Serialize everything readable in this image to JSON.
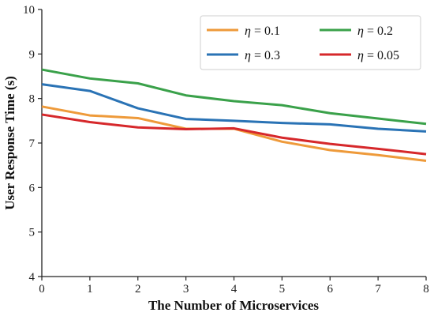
{
  "chart_data": {
    "type": "line",
    "xlabel": "The Number of Microservices",
    "ylabel": "User Response Time (s)",
    "x": [
      0,
      1,
      2,
      3,
      4,
      5,
      6,
      7,
      8
    ],
    "xlim": [
      0,
      8
    ],
    "ylim": [
      4,
      10
    ],
    "xticks": [
      "0",
      "1",
      "2",
      "3",
      "4",
      "5",
      "6",
      "7",
      "8"
    ],
    "yticks": [
      "4",
      "5",
      "6",
      "7",
      "8",
      "9",
      "10"
    ],
    "grid": false,
    "legend_position": "top-right",
    "series": [
      {
        "name_symbol": "η",
        "name_value": "= 0.1",
        "color": "#ee9a3a",
        "values": [
          7.82,
          7.62,
          7.56,
          7.32,
          7.32,
          7.03,
          6.84,
          6.73,
          6.6
        ]
      },
      {
        "name_symbol": "η",
        "name_value": "= 0.3",
        "color": "#2a73b5",
        "values": [
          8.32,
          8.17,
          7.78,
          7.54,
          7.5,
          7.45,
          7.42,
          7.32,
          7.26
        ]
      },
      {
        "name_symbol": "η",
        "name_value": "= 0.2",
        "color": "#3aa14a",
        "values": [
          8.65,
          8.45,
          8.34,
          8.07,
          7.94,
          7.85,
          7.67,
          7.55,
          7.43
        ]
      },
      {
        "name_symbol": "η",
        "name_value": "= 0.05",
        "color": "#d6282b",
        "values": [
          7.64,
          7.47,
          7.35,
          7.31,
          7.33,
          7.12,
          6.98,
          6.87,
          6.75
        ]
      }
    ]
  }
}
